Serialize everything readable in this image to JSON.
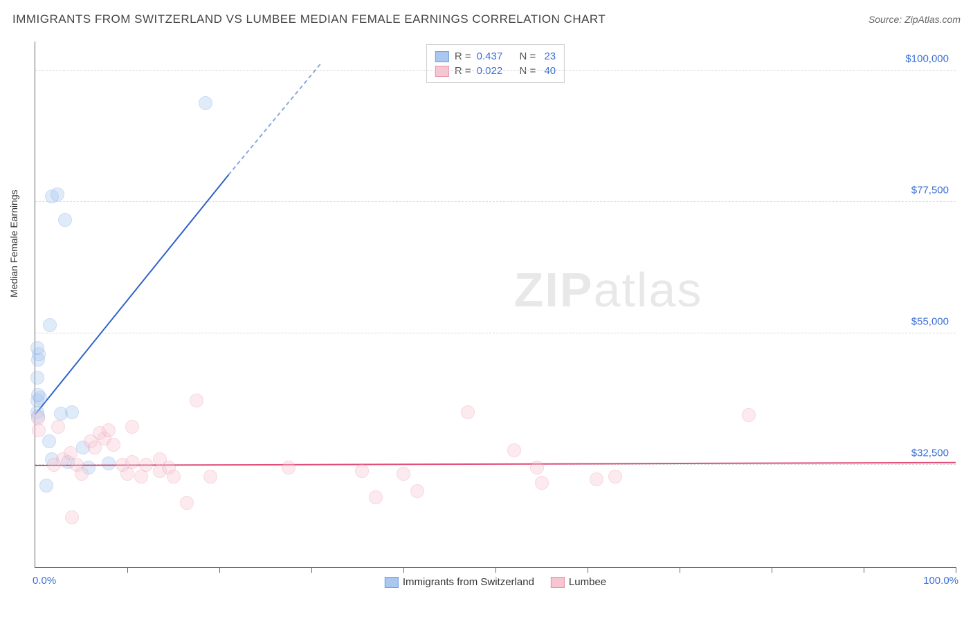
{
  "header": {
    "title": "IMMIGRANTS FROM SWITZERLAND VS LUMBEE MEDIAN FEMALE EARNINGS CORRELATION CHART",
    "source": "Source: ZipAtlas.com"
  },
  "watermark": {
    "part1": "ZIP",
    "part2": "atlas"
  },
  "chart": {
    "type": "scatter",
    "ylabel": "Median Female Earnings",
    "background_color": "#ffffff",
    "grid_color": "#d8d8d8",
    "axis_color": "#666666",
    "xlim": [
      0,
      100
    ],
    "ylim": [
      15000,
      105000
    ],
    "y_ticks": [
      {
        "value": 32500,
        "label": "$32,500"
      },
      {
        "value": 55000,
        "label": "$55,000"
      },
      {
        "value": 77500,
        "label": "$77,500"
      },
      {
        "value": 100000,
        "label": "$100,000"
      }
    ],
    "x_ticks": [
      10,
      20,
      30,
      40,
      50,
      60,
      70,
      80,
      90,
      100
    ],
    "x_axis_labels": {
      "left": "0.0%",
      "right": "100.0%"
    },
    "label_color": "#3b6fd8",
    "label_fontsize": 15,
    "ylabel_fontsize": 14,
    "marker_radius": 9,
    "marker_opacity": 0.35,
    "series": [
      {
        "id": "switzerland",
        "name": "Immigrants from Switzerland",
        "fill_color": "#a9c7f0",
        "stroke_color": "#6f9fe0",
        "line_color": "#2e62c9",
        "R": "0.437",
        "N": "23",
        "trend": {
          "x1": 0,
          "y1": 41000,
          "x2": 21,
          "y2": 82000,
          "dashed_extend_to_x": 31,
          "dashed_extend_to_y": 101000
        },
        "points": [
          {
            "x": 0.2,
            "y": 41500
          },
          {
            "x": 0.3,
            "y": 40800
          },
          {
            "x": 0.2,
            "y": 43500
          },
          {
            "x": 0.5,
            "y": 44000
          },
          {
            "x": 0.3,
            "y": 44500
          },
          {
            "x": 0.2,
            "y": 47500
          },
          {
            "x": 0.3,
            "y": 50500
          },
          {
            "x": 0.4,
            "y": 51500
          },
          {
            "x": 0.2,
            "y": 52500
          },
          {
            "x": 1.6,
            "y": 56500
          },
          {
            "x": 1.8,
            "y": 78500
          },
          {
            "x": 2.4,
            "y": 78800
          },
          {
            "x": 3.2,
            "y": 74500
          },
          {
            "x": 18.5,
            "y": 94500
          },
          {
            "x": 2.8,
            "y": 41300
          },
          {
            "x": 4.0,
            "y": 41500
          },
          {
            "x": 1.8,
            "y": 33500
          },
          {
            "x": 3.5,
            "y": 33000
          },
          {
            "x": 5.2,
            "y": 35500
          },
          {
            "x": 5.8,
            "y": 32000
          },
          {
            "x": 8.0,
            "y": 32800
          },
          {
            "x": 1.2,
            "y": 29000
          },
          {
            "x": 1.5,
            "y": 36500
          }
        ]
      },
      {
        "id": "lumbee",
        "name": "Lumbee",
        "fill_color": "#f7c6d2",
        "stroke_color": "#e98fa8",
        "line_color": "#e24d78",
        "R": "0.022",
        "N": "40",
        "trend": {
          "x1": 0,
          "y1": 32300,
          "x2": 100,
          "y2": 32800
        },
        "points": [
          {
            "x": 0.3,
            "y": 40500
          },
          {
            "x": 0.4,
            "y": 38500
          },
          {
            "x": 2.5,
            "y": 39000
          },
          {
            "x": 3.0,
            "y": 33500
          },
          {
            "x": 2.0,
            "y": 32500
          },
          {
            "x": 3.8,
            "y": 34500
          },
          {
            "x": 4.5,
            "y": 32500
          },
          {
            "x": 5.0,
            "y": 31000
          },
          {
            "x": 6.0,
            "y": 36500
          },
          {
            "x": 6.5,
            "y": 35500
          },
          {
            "x": 7.0,
            "y": 38000
          },
          {
            "x": 7.5,
            "y": 37000
          },
          {
            "x": 8.0,
            "y": 38500
          },
          {
            "x": 8.5,
            "y": 36000
          },
          {
            "x": 9.5,
            "y": 32500
          },
          {
            "x": 10.0,
            "y": 31000
          },
          {
            "x": 10.5,
            "y": 33000
          },
          {
            "x": 11.5,
            "y": 30500
          },
          {
            "x": 12.0,
            "y": 32500
          },
          {
            "x": 13.5,
            "y": 31500
          },
          {
            "x": 13.5,
            "y": 33500
          },
          {
            "x": 14.5,
            "y": 32000
          },
          {
            "x": 15.0,
            "y": 30500
          },
          {
            "x": 17.5,
            "y": 43500
          },
          {
            "x": 16.5,
            "y": 26000
          },
          {
            "x": 19.0,
            "y": 30500
          },
          {
            "x": 4.0,
            "y": 23500
          },
          {
            "x": 27.5,
            "y": 32000
          },
          {
            "x": 37.0,
            "y": 27000
          },
          {
            "x": 35.5,
            "y": 31500
          },
          {
            "x": 40.0,
            "y": 31000
          },
          {
            "x": 41.5,
            "y": 28000
          },
          {
            "x": 47.0,
            "y": 41500
          },
          {
            "x": 52.0,
            "y": 35000
          },
          {
            "x": 54.5,
            "y": 32000
          },
          {
            "x": 55.0,
            "y": 29500
          },
          {
            "x": 61.0,
            "y": 30000
          },
          {
            "x": 63.0,
            "y": 30500
          },
          {
            "x": 77.5,
            "y": 41000
          },
          {
            "x": 10.5,
            "y": 39000
          }
        ]
      }
    ],
    "stats_legend": {
      "r_label": "R =",
      "n_label": "N ="
    },
    "bottom_legend_background": "#ffffff"
  }
}
